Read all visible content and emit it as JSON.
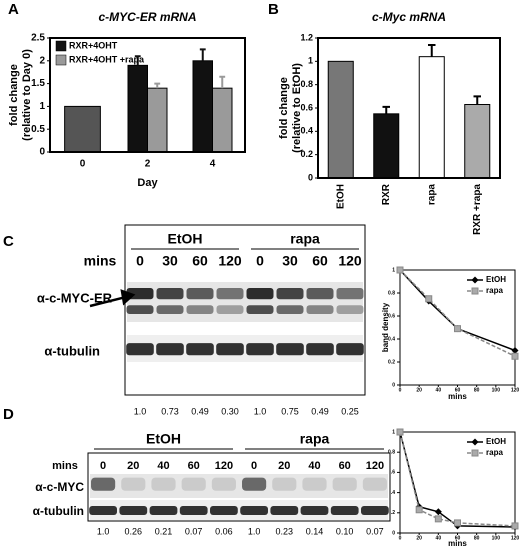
{
  "panel_labels": [
    "A",
    "B",
    "C",
    "D"
  ],
  "chart_data": [
    {
      "type": "bar",
      "title": "c-MYC-ER mRNA",
      "xlabel": "Day",
      "ylabel": [
        "fold change",
        "(relative to Day 0)"
      ],
      "categories": [
        "0",
        "2",
        "4"
      ],
      "ylim": [
        0,
        2.5
      ],
      "yticks": [
        0,
        0.5,
        1,
        1.5,
        2,
        2.5
      ],
      "legend": "upper left",
      "series": [
        {
          "color": "#555555",
          "values": [
            1,
            null,
            null
          ]
        },
        {
          "name": "RXR+4OHT",
          "color": "#111111",
          "values": [
            null,
            1.9,
            2.0
          ],
          "errors": [
            null,
            0.2,
            0.25
          ]
        },
        {
          "name": "RXR+4OHT +rapa",
          "color": "#9a9a9a",
          "values": [
            null,
            1.4,
            1.4
          ],
          "errors": [
            null,
            0.1,
            0.25
          ]
        }
      ]
    },
    {
      "type": "bar",
      "title": "c-Myc mRNA",
      "ylabel": [
        "fold change",
        "(relative to EtOH)"
      ],
      "categories": [
        "EtOH",
        "RXR",
        "rapa",
        "RXR +rapa"
      ],
      "ylim": [
        0,
        1.2
      ],
      "yticks": [
        0,
        0.2,
        0.4,
        0.6,
        0.8,
        1,
        1.2
      ],
      "series": [
        {
          "colors": [
            "#777777",
            "#111111",
            "#ffffff",
            "#aaaaaa"
          ],
          "values": [
            1,
            0.55,
            1.04,
            0.63
          ],
          "errors": [
            null,
            0.06,
            0.1,
            0.07
          ]
        }
      ]
    },
    {
      "type": "line",
      "xlabel": "mins",
      "ylabel": "band density",
      "x": [
        0,
        30,
        60,
        120
      ],
      "xlim": [
        0,
        120
      ],
      "xticks": [
        0,
        20,
        40,
        60,
        80,
        100,
        120
      ],
      "ylim": [
        0,
        1
      ],
      "yticks": [
        0,
        0.2,
        0.4,
        0.6,
        0.8,
        1
      ],
      "legend": "upper right",
      "series": [
        {
          "name": "EtOH",
          "color": "#000000",
          "marker": "diamond",
          "values": [
            1,
            0.73,
            0.49,
            0.3
          ]
        },
        {
          "name": "rapa",
          "color": "#888888",
          "marker": "square",
          "dashed": true,
          "values": [
            1,
            0.75,
            0.49,
            0.25
          ]
        }
      ]
    },
    {
      "type": "line",
      "xlabel": "mins",
      "ylabel": "band density",
      "x": [
        0,
        20,
        40,
        60,
        120
      ],
      "xlim": [
        0,
        120
      ],
      "xticks": [
        0,
        20,
        40,
        60,
        80,
        100,
        120
      ],
      "ylim": [
        0,
        1
      ],
      "yticks": [
        0,
        0.2,
        0.4,
        0.6,
        0.8,
        1
      ],
      "legend": "upper right",
      "series": [
        {
          "name": "EtOH",
          "color": "#000000",
          "marker": "diamond",
          "values": [
            1,
            0.26,
            0.21,
            0.07,
            0.06
          ]
        },
        {
          "name": "rapa",
          "color": "#888888",
          "marker": "square",
          "dashed": true,
          "values": [
            1,
            0.23,
            0.14,
            0.1,
            0.07
          ]
        }
      ]
    }
  ],
  "blots": [
    {
      "groups": [
        "EtOH",
        "rapa"
      ],
      "lane_label": "mins",
      "lanes": [
        "0",
        "30",
        "60",
        "120",
        "0",
        "30",
        "60",
        "120"
      ],
      "rows": [
        "α-c-MYC-ER",
        "α-tubulin"
      ],
      "quantification": [
        "1.0",
        "0.73",
        "0.49",
        "0.30",
        "1.0",
        "0.75",
        "0.49",
        "0.25"
      ]
    },
    {
      "groups": [
        "EtOH",
        "rapa"
      ],
      "lane_label": "mins",
      "lanes": [
        "0",
        "20",
        "40",
        "60",
        "120",
        "0",
        "20",
        "40",
        "60",
        "120"
      ],
      "rows": [
        "α-c-MYC",
        "α-tubulin"
      ],
      "quantification": [
        "1.0",
        "0.26",
        "0.21",
        "0.07",
        "0.06",
        "1.0",
        "0.23",
        "0.14",
        "0.10",
        "0.07"
      ]
    }
  ]
}
